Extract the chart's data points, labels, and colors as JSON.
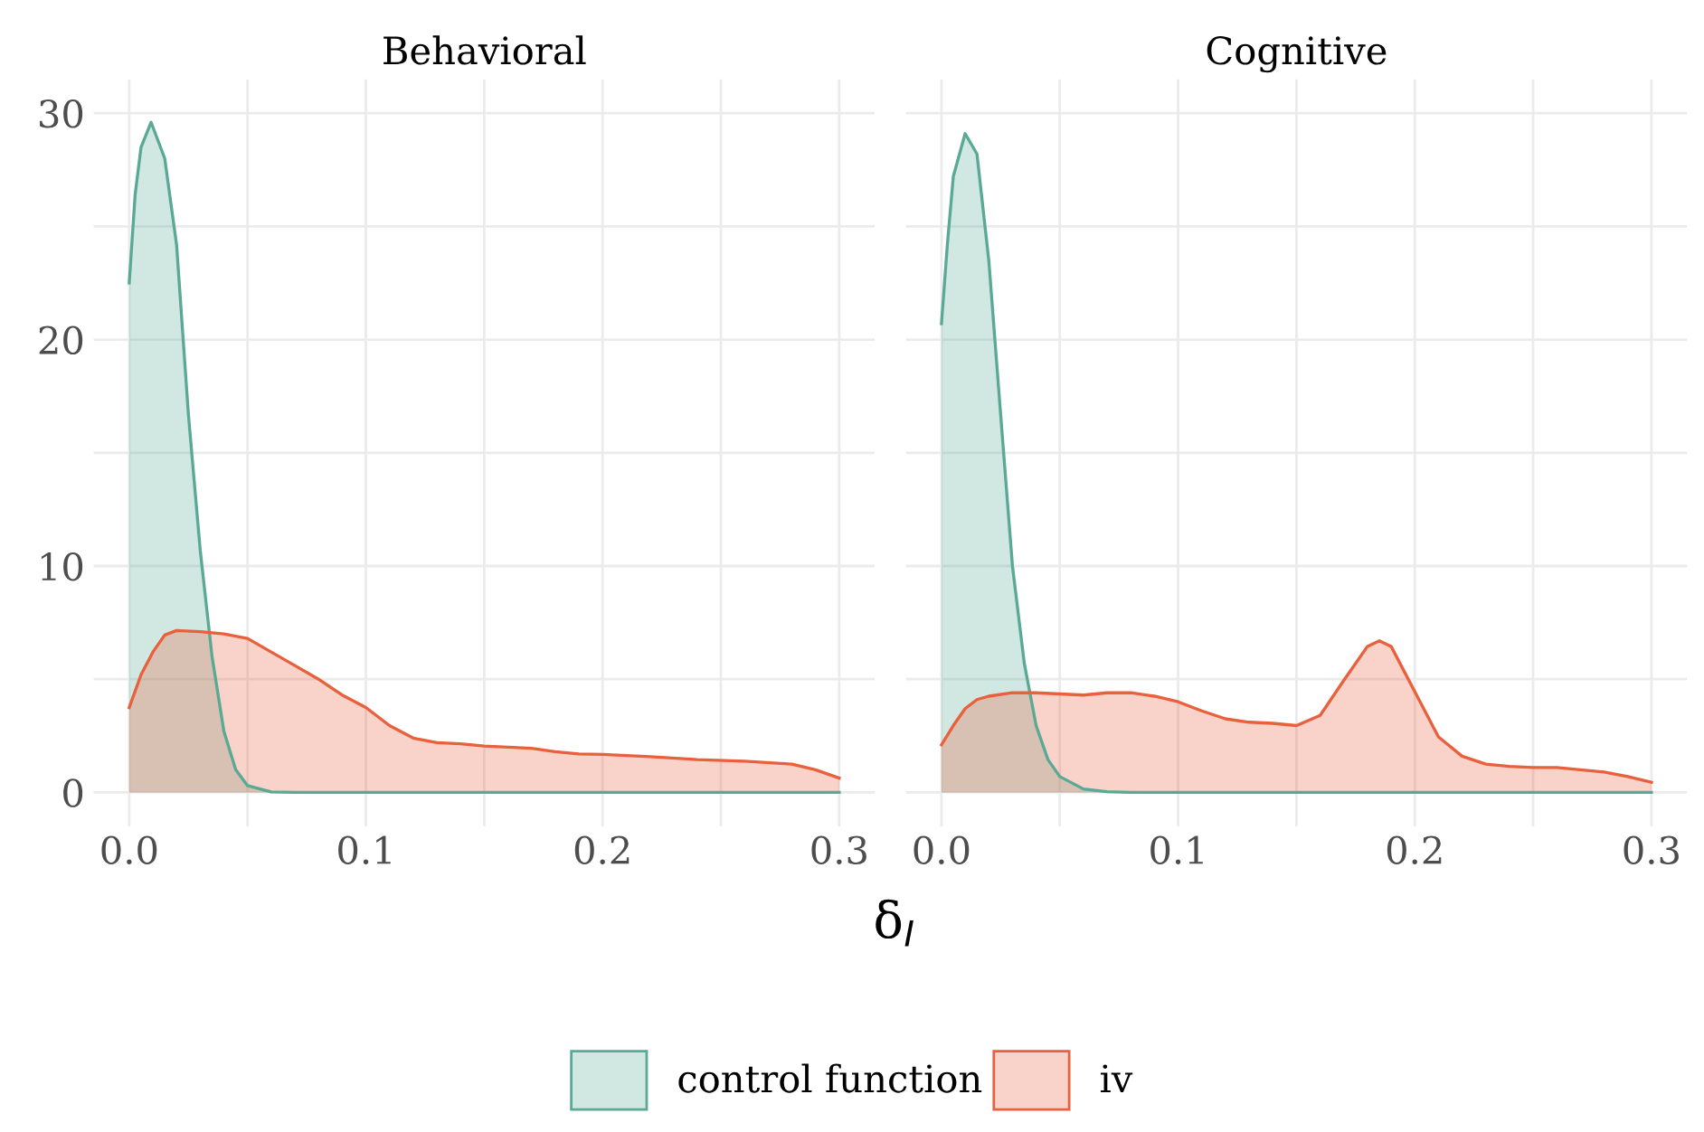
{
  "chart_data": [
    {
      "type": "area",
      "title": "Behavioral",
      "xlabel": "δ$_{I}$",
      "legend": "bottom",
      "grid": true,
      "xlim": [
        -0.015,
        0.315
      ],
      "ylim": [
        -1.5,
        31.5
      ],
      "xticks": [
        {
          "value": 0,
          "label": "0.0"
        },
        {
          "value": 0.05,
          "label": null
        },
        0.1,
        {
          "value": 0.15,
          "label": null
        },
        0.2,
        {
          "value": 0.25,
          "label": null
        },
        0.3
      ],
      "yticks": [
        0,
        {
          "value": 5,
          "label": null
        },
        10,
        {
          "value": 15,
          "label": null
        },
        20,
        {
          "value": 25,
          "label": null
        },
        30
      ],
      "series": [
        {
          "name": "control function",
          "color": "#5aa995",
          "x": [
            0,
            0.0025,
            0.005,
            0.00925,
            0.015,
            0.02,
            0.025,
            0.03,
            0.035,
            0.04,
            0.045,
            0.05,
            0.06,
            0.07,
            0.3
          ],
          "values": [
            22.5,
            26.4,
            28.5,
            29.6,
            28,
            24.2,
            16.7,
            10.7,
            6,
            2.7,
            1,
            0.3,
            0.02,
            0,
            0
          ]
        },
        {
          "name": "iv",
          "color": "#e8603c",
          "x": [
            0,
            0.005,
            0.01,
            0.015,
            0.02,
            0.03,
            0.04,
            0.05,
            0.06,
            0.07,
            0.08,
            0.09,
            0.1,
            0.11,
            0.12,
            0.13,
            0.14,
            0.15,
            0.16,
            0.17,
            0.18,
            0.19,
            0.2,
            0.22,
            0.24,
            0.26,
            0.28,
            0.29,
            0.3
          ],
          "values": [
            3.75,
            5.2,
            6.2,
            6.95,
            7.15,
            7.1,
            7.0,
            6.8,
            6.2,
            5.6,
            5.0,
            4.3,
            3.75,
            2.95,
            2.4,
            2.2,
            2.15,
            2.05,
            2.0,
            1.95,
            1.8,
            1.7,
            1.68,
            1.58,
            1.45,
            1.38,
            1.25,
            1.0,
            0.63
          ]
        }
      ]
    },
    {
      "type": "area",
      "title": "Cognitive",
      "grid": true,
      "tick_labels": "x",
      "xlim": [
        -0.015,
        0.315
      ],
      "ylim": [
        -1.5,
        31.5
      ],
      "xticks": [
        {
          "value": 0,
          "label": "0.0"
        },
        {
          "value": 0.05,
          "label": null
        },
        0.1,
        {
          "value": 0.15,
          "label": null
        },
        0.2,
        {
          "value": 0.25,
          "label": null
        },
        0.3
      ],
      "yticks": [
        0,
        {
          "value": 5,
          "label": null
        },
        10,
        {
          "value": 15,
          "label": null
        },
        20,
        {
          "value": 25,
          "label": null
        },
        30
      ],
      "series": [
        {
          "color": "#5aa995",
          "x": [
            0,
            0.0025,
            0.005,
            0.01,
            0.015,
            0.02,
            0.025,
            0.03,
            0.035,
            0.04,
            0.045,
            0.05,
            0.06,
            0.07,
            0.08,
            0.3
          ],
          "values": [
            20.7,
            24.2,
            27.2,
            29.1,
            28.2,
            23.5,
            16.7,
            10,
            5.7,
            2.95,
            1.45,
            0.7,
            0.15,
            0.03,
            0,
            0
          ]
        },
        {
          "color": "#e8603c",
          "x": [
            0,
            0.005,
            0.01,
            0.015,
            0.02,
            0.03,
            0.04,
            0.05,
            0.06,
            0.07,
            0.08,
            0.09,
            0.1,
            0.11,
            0.12,
            0.13,
            0.14,
            0.15,
            0.16,
            0.17,
            0.18,
            0.185,
            0.19,
            0.2,
            0.21,
            0.22,
            0.23,
            0.24,
            0.25,
            0.26,
            0.27,
            0.28,
            0.29,
            0.3
          ],
          "values": [
            2.1,
            2.95,
            3.7,
            4.1,
            4.25,
            4.4,
            4.4,
            4.35,
            4.3,
            4.4,
            4.4,
            4.25,
            4.0,
            3.6,
            3.25,
            3.1,
            3.05,
            2.95,
            3.4,
            4.95,
            6.45,
            6.7,
            6.45,
            4.45,
            2.45,
            1.6,
            1.25,
            1.15,
            1.1,
            1.1,
            1.0,
            0.9,
            0.7,
            0.45
          ]
        }
      ]
    }
  ]
}
